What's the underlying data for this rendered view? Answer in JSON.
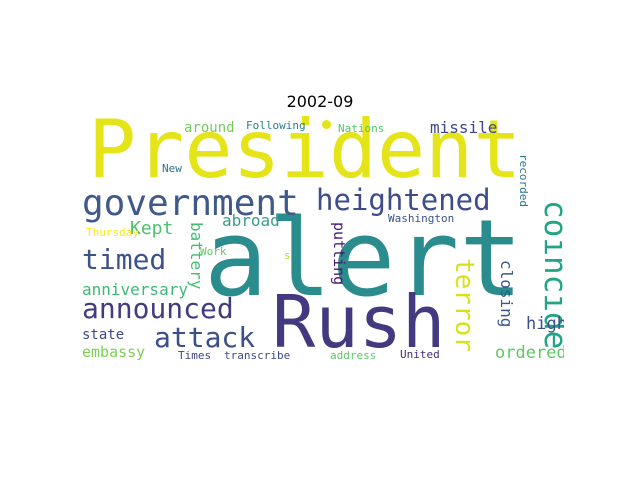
{
  "figure": {
    "title": "2002-09"
  },
  "words": [
    {
      "text": "President",
      "color": "#e4e419"
    },
    {
      "text": "alert",
      "color": "#2a8c8c"
    },
    {
      "text": "Rush",
      "color": "#433980"
    },
    {
      "text": "government",
      "color": "#3f5a8a"
    },
    {
      "text": "heightened",
      "color": "#3f4c8a"
    },
    {
      "text": "coincide",
      "color": "#21a585"
    },
    {
      "text": "announced",
      "color": "#433b7e"
    },
    {
      "text": "attack",
      "color": "#3c4f8a"
    },
    {
      "text": "terror",
      "color": "#d8e219"
    },
    {
      "text": "timed",
      "color": "#3b528b"
    },
    {
      "text": "missile",
      "color": "#3f4788"
    },
    {
      "text": "anniversary",
      "color": "#3cb876"
    },
    {
      "text": "ordered",
      "color": "#5ec962"
    },
    {
      "text": "Kept",
      "color": "#4ac16d"
    },
    {
      "text": "abroad",
      "color": "#3b9a8c"
    },
    {
      "text": "closing",
      "color": "#38588c"
    },
    {
      "text": "high",
      "color": "#3b4f8a"
    },
    {
      "text": "battery",
      "color": "#42be71"
    },
    {
      "text": "putting",
      "color": "#481a6c"
    },
    {
      "text": "embassy",
      "color": "#7ad151"
    },
    {
      "text": "state",
      "color": "#3e4989"
    },
    {
      "text": "around",
      "color": "#6ece58"
    },
    {
      "text": "Following",
      "color": "#277f8e"
    },
    {
      "text": "Nations",
      "color": "#52c569"
    },
    {
      "text": "New",
      "color": "#2c728e"
    },
    {
      "text": "recorded",
      "color": "#2a788e"
    },
    {
      "text": "Washington",
      "color": "#3b528b"
    },
    {
      "text": "Thursday",
      "color": "#fde725"
    },
    {
      "text": "Work",
      "color": "#5ec962"
    },
    {
      "text": "s",
      "color": "#b5de2b"
    },
    {
      "text": "Times",
      "color": "#414487"
    },
    {
      "text": "transcribe",
      "color": "#3e4a89"
    },
    {
      "text": "address",
      "color": "#5ec962"
    },
    {
      "text": "United",
      "color": "#482878"
    }
  ],
  "dot_color": "#e4e419"
}
